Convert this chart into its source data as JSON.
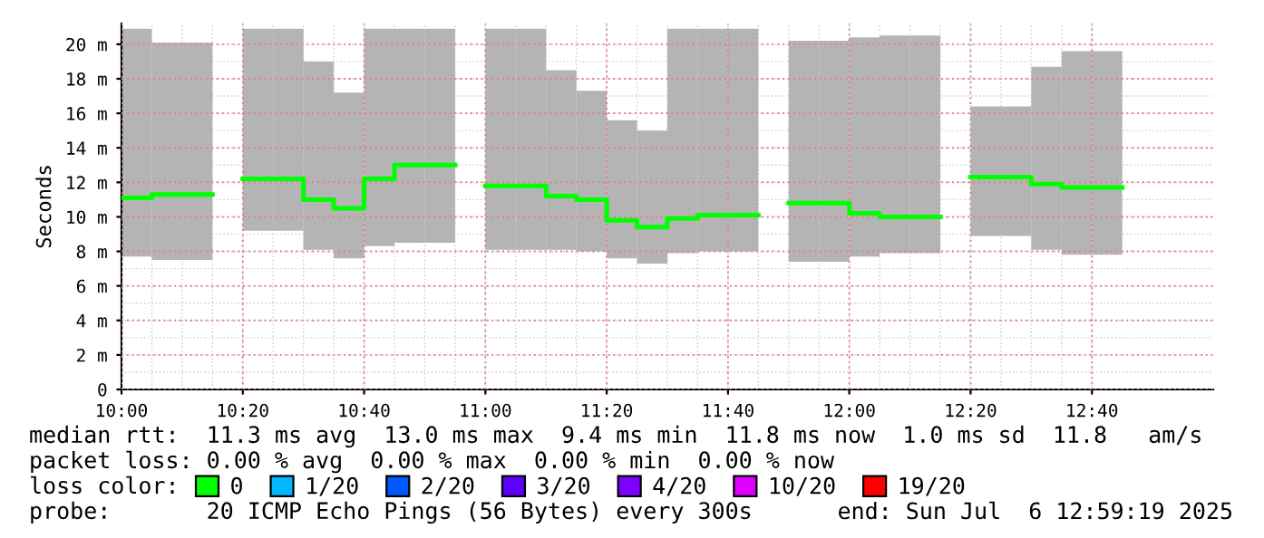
{
  "chart_data": {
    "type": "step",
    "ylabel": "Seconds",
    "legend_title": "loss color:",
    "x": [
      10.0,
      10.0833,
      10.1667,
      10.25,
      10.3333,
      10.4167,
      10.5,
      10.5833,
      10.6667,
      10.75,
      10.8333,
      10.9167,
      11.0,
      11.0833,
      11.1667,
      11.25,
      11.3333,
      11.4167,
      11.5,
      11.5833,
      11.6667,
      11.75,
      11.8333,
      11.9167,
      12.0,
      12.0833,
      12.1667,
      12.25,
      12.3333,
      12.4167,
      12.5,
      12.5833,
      12.6667,
      12.75
    ],
    "series": [
      {
        "name": "0",
        "color": "#00ff00",
        "values": [
          11.1,
          11.3,
          11.3,
          null,
          12.2,
          12.2,
          11.0,
          10.5,
          12.2,
          13.0,
          13.0,
          null,
          11.8,
          11.8,
          11.2,
          11.0,
          9.8,
          9.4,
          9.9,
          10.1,
          10.1,
          null,
          10.8,
          10.8,
          10.2,
          10.0,
          10.0,
          null,
          12.3,
          12.3,
          11.9,
          11.7,
          11.7,
          11.7
        ],
        "upper": [
          20.9,
          20.1,
          20.1,
          null,
          20.9,
          20.9,
          19.0,
          17.2,
          20.9,
          20.9,
          20.9,
          null,
          20.9,
          20.9,
          18.5,
          17.3,
          15.6,
          15.0,
          20.9,
          20.9,
          20.9,
          null,
          20.2,
          20.2,
          20.4,
          20.5,
          20.5,
          null,
          16.4,
          16.4,
          18.7,
          19.6,
          19.6,
          19.6
        ],
        "lower": [
          7.7,
          7.5,
          7.5,
          null,
          9.2,
          9.2,
          8.1,
          7.6,
          8.3,
          8.5,
          8.5,
          null,
          8.1,
          8.1,
          8.1,
          8.0,
          7.6,
          7.3,
          7.9,
          8.0,
          8.0,
          null,
          7.4,
          7.4,
          7.7,
          7.9,
          7.9,
          null,
          8.9,
          8.9,
          8.1,
          7.8,
          7.8,
          7.8
        ]
      },
      {
        "name": "1/20",
        "color": "#00b8ff",
        "values": [
          null,
          null,
          null,
          null,
          null,
          null,
          null,
          null,
          null,
          null,
          null,
          null,
          null,
          null,
          null,
          null,
          null,
          null,
          null,
          null,
          null,
          null,
          null,
          null,
          null,
          null,
          null,
          null,
          null,
          null,
          null,
          null,
          null,
          null
        ]
      },
      {
        "name": "2/20",
        "color": "#0059ff",
        "values": [
          null,
          null,
          null,
          null,
          null,
          null,
          null,
          null,
          null,
          null,
          null,
          null,
          null,
          null,
          null,
          null,
          null,
          null,
          null,
          null,
          null,
          null,
          null,
          null,
          null,
          null,
          null,
          null,
          null,
          null,
          null,
          null,
          null,
          null
        ]
      },
      {
        "name": "3/20",
        "color": "#5e00ff",
        "values": [
          null,
          null,
          null,
          null,
          null,
          null,
          null,
          null,
          null,
          null,
          null,
          null,
          null,
          null,
          null,
          null,
          null,
          null,
          null,
          null,
          null,
          null,
          null,
          null,
          null,
          null,
          null,
          null,
          null,
          null,
          null,
          null,
          null,
          null
        ]
      },
      {
        "name": "4/20",
        "color": "#7e00ff",
        "values": [
          null,
          null,
          null,
          null,
          null,
          null,
          null,
          null,
          null,
          null,
          null,
          null,
          null,
          null,
          null,
          null,
          null,
          null,
          null,
          null,
          null,
          null,
          null,
          null,
          null,
          null,
          null,
          null,
          null,
          null,
          null,
          null,
          null,
          null
        ]
      },
      {
        "name": "10/20",
        "color": "#dd00ff",
        "values": [
          null,
          null,
          null,
          null,
          null,
          null,
          null,
          null,
          null,
          null,
          null,
          null,
          null,
          null,
          null,
          null,
          null,
          null,
          null,
          null,
          null,
          null,
          null,
          null,
          null,
          null,
          null,
          null,
          null,
          null,
          null,
          null,
          null,
          null
        ]
      },
      {
        "name": "19/20",
        "color": "#ff0000",
        "values": [
          null,
          null,
          null,
          null,
          null,
          null,
          null,
          null,
          null,
          null,
          null,
          null,
          null,
          null,
          null,
          null,
          null,
          null,
          null,
          null,
          null,
          null,
          null,
          null,
          null,
          null,
          null,
          null,
          null,
          null,
          null,
          null,
          null,
          null
        ]
      }
    ],
    "xlim": [
      10.0,
      13.0
    ],
    "xticks": [
      {
        "value": 10.0,
        "label": "10:00"
      },
      {
        "value": 10.3333,
        "label": "10:20"
      },
      {
        "value": 10.6667,
        "label": "10:40"
      },
      {
        "value": 11.0,
        "label": "11:00"
      },
      {
        "value": 11.3333,
        "label": "11:20"
      },
      {
        "value": 11.6667,
        "label": "11:40"
      },
      {
        "value": 12.0,
        "label": "12:00"
      },
      {
        "value": 12.3333,
        "label": "12:20"
      },
      {
        "value": 12.6667,
        "label": "12:40"
      }
    ],
    "ylim": [
      0,
      21.2
    ],
    "yticks": [
      0,
      {
        "value": 2,
        "label": "2 m"
      },
      {
        "value": 4,
        "label": "4 m"
      },
      {
        "value": 6,
        "label": "6 m"
      },
      {
        "value": 8,
        "label": "8 m"
      },
      {
        "value": 10,
        "label": "10 m"
      },
      {
        "value": 12,
        "label": "12 m"
      },
      {
        "value": 14,
        "label": "14 m"
      },
      {
        "value": 16,
        "label": "16 m"
      },
      {
        "value": 18,
        "label": "18 m"
      },
      {
        "value": 20,
        "label": "20 m"
      }
    ],
    "grid": true,
    "legend": "bottom",
    "annotations": [
      "median rtt:  11.3 ms avg  13.0 ms max  9.4 ms min  11.8 ms now  1.0 ms sd  11.8   am/s",
      "packet loss: 0.00 % avg  0.00 % max  0.00 % min  0.00 % now",
      "probe:       20 ICMP Echo Pings (56 Bytes) every 300s",
      "end: Sun Jul  6 12:59:19 2025"
    ]
  }
}
